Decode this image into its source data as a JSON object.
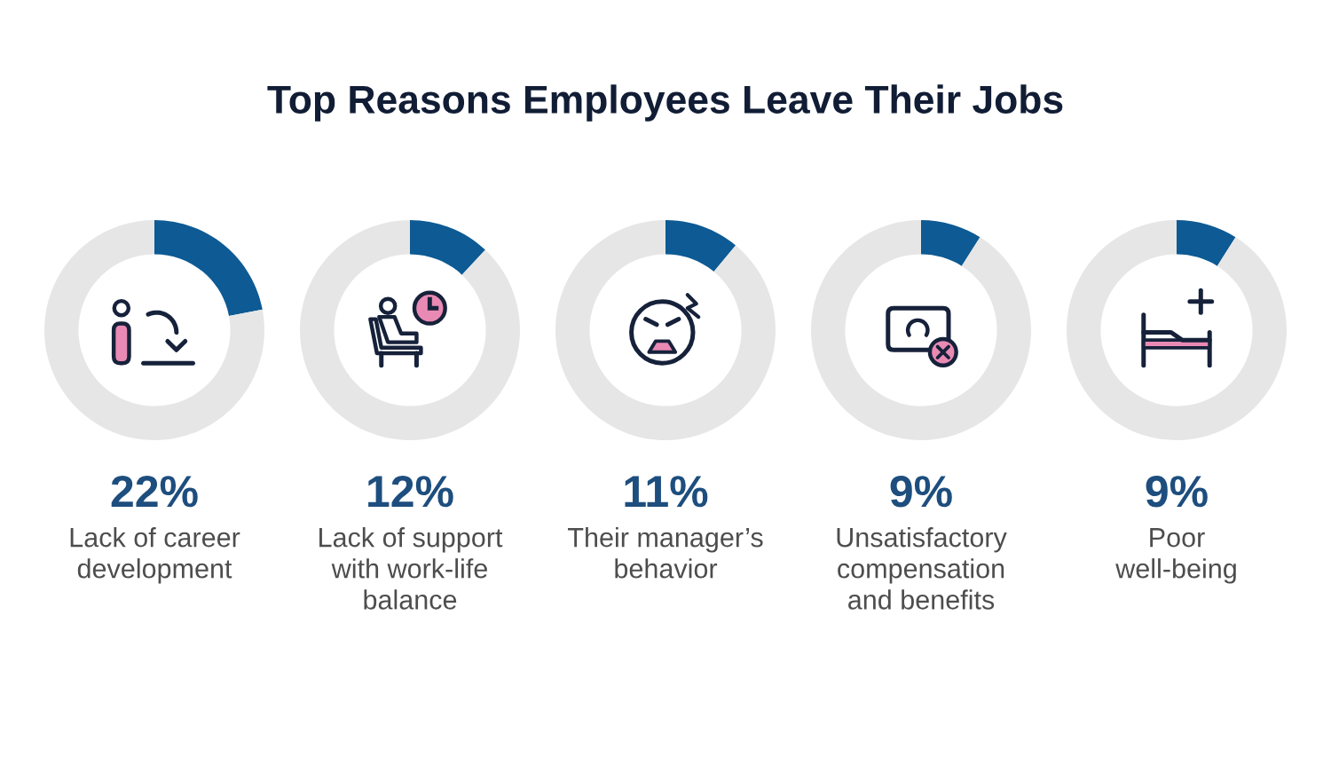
{
  "chart_data": [
    {
      "type": "donut",
      "xlabel": "Lack of career\ndevelopment",
      "categories": [
        null,
        null
      ],
      "values": [
        22,
        78
      ],
      "colors": [
        "#0d5a94",
        "#e6e6e6"
      ],
      "annotations": [
        "22%"
      ]
    },
    {
      "type": "donut",
      "xlabel": "Lack of support\nwith work-life\nbalance",
      "categories": [
        null,
        null
      ],
      "values": [
        12,
        88
      ],
      "colors": [
        "#0d5a94",
        "#e6e6e6"
      ],
      "annotations": [
        "12%"
      ]
    },
    {
      "type": "donut",
      "title": "Top Reasons Employees Leave Their Jobs",
      "xlabel": "Their manager’s\nbehavior",
      "categories": [
        null,
        null
      ],
      "values": [
        11,
        89
      ],
      "colors": [
        "#0d5a94",
        "#e6e6e6"
      ],
      "annotations": [
        "11%"
      ]
    },
    {
      "type": "donut",
      "xlabel": "Unsatisfactory\ncompensation\nand benefits",
      "categories": [
        null,
        null
      ],
      "values": [
        9,
        91
      ],
      "colors": [
        "#0d5a94",
        "#e6e6e6"
      ],
      "annotations": [
        "9%"
      ]
    },
    {
      "type": "donut",
      "xlabel": "Poor\nwell-being",
      "categories": [
        null,
        null
      ],
      "values": [
        9,
        91
      ],
      "colors": [
        "#0d5a94",
        "#e6e6e6"
      ],
      "annotations": [
        "9%"
      ]
    }
  ]
}
